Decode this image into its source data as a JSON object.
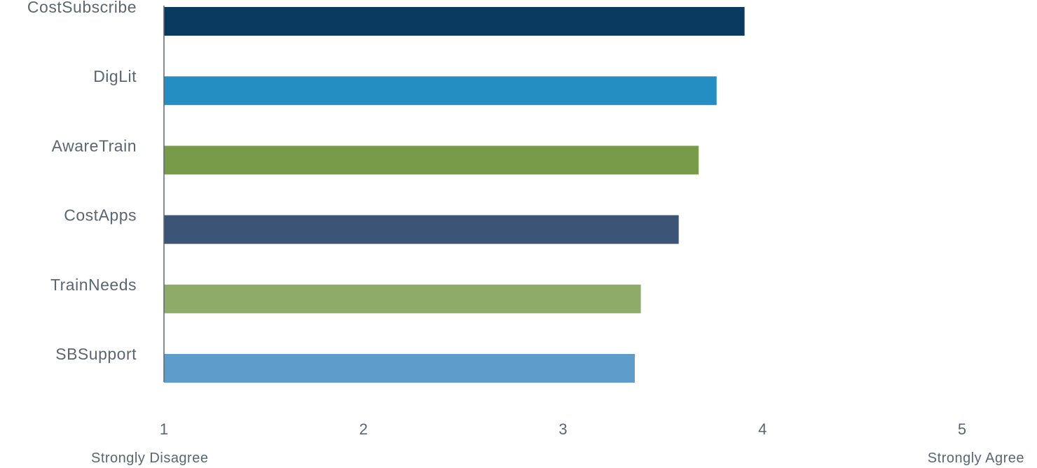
{
  "chart_data": {
    "type": "bar",
    "orientation": "horizontal",
    "title": "",
    "xlabel": "",
    "ylabel": "",
    "categories": [
      "CostSubscribe",
      "DigLit",
      "AwareTrain",
      "CostApps",
      "TrainNeeds",
      "SBSupport"
    ],
    "values": [
      3.91,
      3.77,
      3.68,
      3.58,
      3.39,
      3.36
    ],
    "colors": [
      "#0b3a60",
      "#248dc2",
      "#789b49",
      "#3c5476",
      "#8fab69",
      "#5e9dcb"
    ],
    "xlim": [
      1,
      5
    ],
    "xticks": [
      1,
      2,
      3,
      4,
      5
    ],
    "xtick_labels": [
      "1",
      "2",
      "3",
      "4",
      "5"
    ],
    "scale_anchors": {
      "low": "Strongly Disagree",
      "high": "Strongly Agree"
    },
    "grid": false,
    "legend": "none"
  }
}
